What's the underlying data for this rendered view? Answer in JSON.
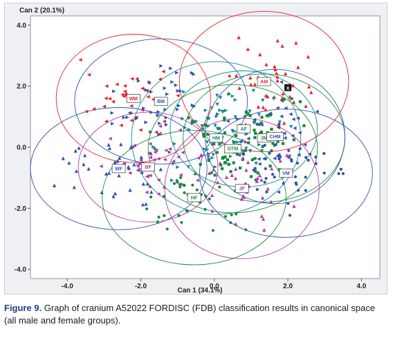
{
  "chart_data": {
    "type": "scatter",
    "xlabel": "Can 1 (34.1%)",
    "ylabel": "Can 2 (20.1%)",
    "xlim": [
      -5.0,
      4.5
    ],
    "ylim": [
      -4.3,
      4.3
    ],
    "xticks": [
      "-4.0",
      "-2.0",
      "0.0",
      "2.0",
      "4.0"
    ],
    "xtick_values": [
      -4,
      -2,
      0,
      2,
      4
    ],
    "yticks": [
      "4.0",
      "2.0",
      "0.0",
      "-2.0",
      "-4.0"
    ],
    "ytick_values": [
      4,
      2,
      0,
      -2,
      -4
    ],
    "grid": false,
    "groups": [
      {
        "label": "AM",
        "color": "#e8202a",
        "marker": "triangle-up",
        "centroid": [
          1.35,
          2.15
        ],
        "radius": [
          2.3,
          2.3
        ]
      },
      {
        "label": "WM",
        "color": "#e8202a",
        "marker": "triangle-left",
        "centroid": [
          -2.2,
          1.6
        ],
        "radius": [
          2.1,
          2.1
        ]
      },
      {
        "label": "BM",
        "color": "#2e4fb0",
        "marker": "triangle-right",
        "centroid": [
          -1.45,
          1.5
        ],
        "radius": [
          2.35,
          2.05
        ]
      },
      {
        "label": "WF",
        "color": "#2e4fb0",
        "marker": "triangle-up",
        "centroid": [
          -2.6,
          -0.7
        ],
        "radius": [
          2.4,
          2.0
        ]
      },
      {
        "label": "BF",
        "color": "#b03aa5",
        "marker": "triangle-left",
        "centroid": [
          -1.8,
          -0.65
        ],
        "radius": [
          1.9,
          1.8
        ]
      },
      {
        "label": "AF",
        "color": "#0e8a8a",
        "marker": "triangle-down",
        "centroid": [
          0.8,
          0.6
        ],
        "radius": [
          2.0,
          1.9
        ]
      },
      {
        "label": "HM",
        "color": "#0e8a8a",
        "marker": "triangle-right",
        "centroid": [
          0.05,
          0.3
        ],
        "radius": [
          2.3,
          2.5
        ]
      },
      {
        "label": "GTM",
        "color": "#17893a",
        "marker": "square",
        "centroid": [
          0.5,
          -0.05
        ],
        "radius": [
          2.3,
          2.1
        ]
      },
      {
        "label": "JM",
        "color": "#17893a",
        "marker": "square",
        "centroid": [
          1.35,
          0.3
        ],
        "radius": [
          2.2,
          2.1
        ]
      },
      {
        "label": "CHM",
        "color": "#2e4fb0",
        "marker": "triangle-left",
        "centroid": [
          1.65,
          0.35
        ],
        "radius": [
          1.9,
          2.2
        ]
      },
      {
        "label": "VM",
        "color": "#2e4fb0",
        "marker": "circle",
        "centroid": [
          1.95,
          -0.85
        ],
        "radius": [
          2.35,
          2.1
        ]
      },
      {
        "label": "JF",
        "color": "#b03aa5",
        "marker": "triangle-up",
        "centroid": [
          0.75,
          -1.35
        ],
        "radius": [
          2.1,
          2.3
        ]
      },
      {
        "label": "HF",
        "color": "#17893a",
        "marker": "circle",
        "centroid": [
          -0.55,
          -1.65
        ],
        "radius": [
          2.5,
          2.2
        ]
      }
    ],
    "unknown_case": {
      "label": "X",
      "x": 2.0,
      "y": 1.95
    },
    "caption": {
      "lead": "Figure 9.",
      "text": " Graph of cranium A52022 FORDISC (FDB) classification results in canonical space (all male and female groups)."
    }
  }
}
